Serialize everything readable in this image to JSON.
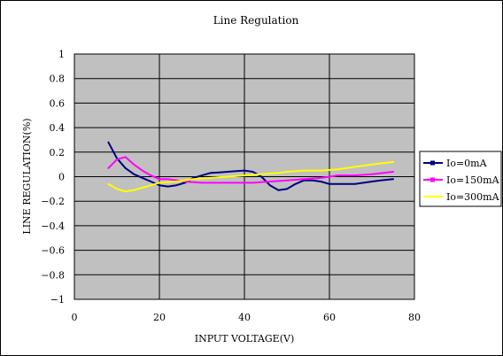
{
  "chart_data": {
    "type": "line",
    "title": "Line Regulation",
    "xlabel": "INPUT VOLTAGE(V)",
    "ylabel": "LINE REGULATION(%)",
    "xlim": [
      0,
      80
    ],
    "ylim": [
      -1,
      1
    ],
    "x_ticks": [
      0,
      20,
      40,
      60,
      80
    ],
    "y_ticks": [
      1,
      0.8,
      0.6,
      0.4,
      0.2,
      0,
      -0.2,
      -0.4,
      -0.6,
      -0.8,
      -1
    ],
    "x_tick_labels": [
      "0",
      "20",
      "40",
      "60",
      "80"
    ],
    "y_tick_labels": [
      "1",
      "0.8",
      "0.6",
      "0.4",
      "0.2",
      "0",
      "−0.2",
      "−0.4",
      "−0.6",
      "−0.8",
      "−1"
    ],
    "grid": true,
    "plot_background": "#c0c0c0",
    "legend_position": "right",
    "series": [
      {
        "name": "Io=0mA",
        "color": "#000080",
        "x": [
          8,
          10,
          12,
          14,
          16,
          18,
          20,
          22,
          24,
          26,
          28,
          30,
          32,
          34,
          36,
          38,
          40,
          42,
          44,
          46,
          48,
          50,
          52,
          54,
          56,
          58,
          60,
          62,
          64,
          66,
          68,
          70,
          72,
          75
        ],
        "y": [
          0.28,
          0.15,
          0.07,
          0.02,
          -0.01,
          -0.04,
          -0.07,
          -0.08,
          -0.07,
          -0.05,
          -0.01,
          0.01,
          0.03,
          0.035,
          0.04,
          0.045,
          0.05,
          0.04,
          0.0,
          -0.07,
          -0.11,
          -0.1,
          -0.06,
          -0.03,
          -0.03,
          -0.04,
          -0.06,
          -0.06,
          -0.06,
          -0.06,
          -0.05,
          -0.04,
          -0.03,
          -0.02
        ]
      },
      {
        "name": "Io=150mA",
        "color": "#ff00ff",
        "x": [
          8,
          10,
          12,
          14,
          16,
          18,
          20,
          22,
          26,
          30,
          34,
          38,
          42,
          46,
          50,
          54,
          58,
          62,
          66,
          70,
          75
        ],
        "y": [
          0.07,
          0.14,
          0.16,
          0.1,
          0.05,
          0.01,
          -0.02,
          -0.02,
          -0.04,
          -0.05,
          -0.05,
          -0.05,
          -0.05,
          -0.04,
          -0.03,
          -0.02,
          -0.01,
          0.01,
          0.01,
          0.02,
          0.04
        ]
      },
      {
        "name": "Io=300mA",
        "color": "#ffff00",
        "x": [
          8,
          10,
          12,
          14,
          16,
          18,
          20,
          24,
          28,
          32,
          36,
          40,
          44,
          48,
          50,
          54,
          58,
          62,
          66,
          70,
          75
        ],
        "y": [
          -0.06,
          -0.1,
          -0.12,
          -0.11,
          -0.09,
          -0.07,
          -0.05,
          -0.04,
          -0.02,
          -0.01,
          0.0,
          0.01,
          0.02,
          0.03,
          0.04,
          0.05,
          0.05,
          0.06,
          0.08,
          0.1,
          0.12
        ]
      }
    ]
  }
}
